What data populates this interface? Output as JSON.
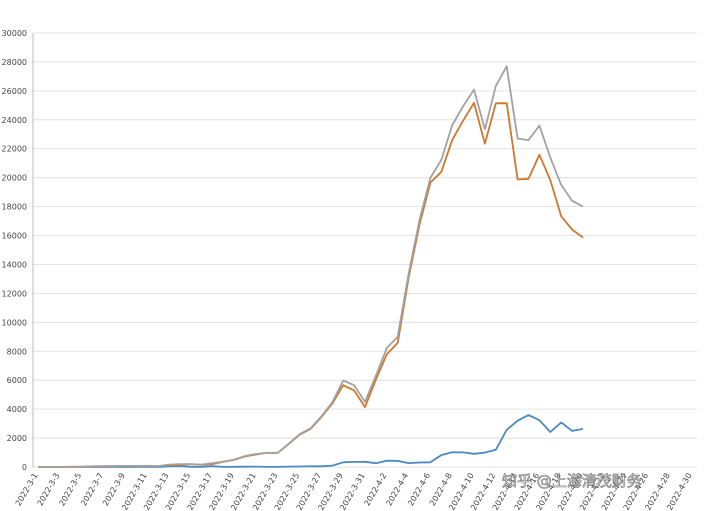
{
  "chart_data": {
    "type": "line",
    "categories": [
      "2022-3-1",
      null,
      "2022-3-3",
      null,
      "2022-3-5",
      null,
      "2022-3-7",
      null,
      "2022-3-9",
      null,
      "2022-3-11",
      null,
      "2022-3-13",
      null,
      "2022-3-15",
      null,
      "2022-3-17",
      null,
      "2022-3-19",
      null,
      "2022-3-21",
      null,
      "2022-3-23",
      null,
      "2022-3-25",
      null,
      "2022-3-27",
      null,
      "2022-3-29",
      null,
      "2022-3-31",
      null,
      "2022-4-2",
      null,
      "2022-4-4",
      null,
      "2022-4-6",
      null,
      "2022-4-8",
      null,
      "2022-4-10",
      null,
      "2022-4-12",
      null,
      "2022-4-14",
      null,
      "2022-4-16",
      null,
      "2022-4-18",
      null,
      "2022-4-20",
      null,
      "2022-4-22",
      null,
      "2022-4-24",
      null,
      "2022-4-26",
      null,
      "2022-4-28",
      null,
      "2022-4-30"
    ],
    "series": [
      {
        "color": "#4a89c2",
        "values": [
          1,
          1,
          3,
          2,
          0,
          3,
          3,
          4,
          3,
          11,
          5,
          1,
          41,
          65,
          5,
          8,
          57,
          8,
          17,
          24,
          31,
          4,
          4,
          29,
          38,
          45,
          50,
          96,
          326,
          355,
          358,
          260,
          438,
          425,
          268,
          311,
          322,
          824,
          1015,
          1006,
          914,
          994,
          1189,
          2573,
          3200,
          3590,
          3238,
          2417,
          3084,
          2494,
          2634,
          null,
          null,
          null,
          null,
          null,
          null,
          null,
          null,
          null,
          null
        ]
      },
      {
        "color": "#d2762c",
        "values": [
          1,
          1,
          2,
          14,
          16,
          45,
          51,
          62,
          76,
          64,
          78,
          64,
          128,
          130,
          197,
          150,
          203,
          366,
          492,
          734,
          865,
          977,
          979,
          1580,
          2231,
          2631,
          3450,
          4381,
          5656,
          5298,
          4144,
          6051,
          7788,
          8581,
          13086,
          16766,
          19660,
          20398,
          22609,
          23937,
          25173,
          22348,
          25141,
          25146,
          19872,
          19923,
          21582,
          19831,
          17332,
          16407,
          15861,
          null,
          null,
          null,
          null,
          null,
          null,
          null,
          null,
          null,
          null
        ]
      },
      {
        "color": "#a2a2a2",
        "values": [
          2,
          2,
          5,
          16,
          16,
          48,
          54,
          66,
          79,
          75,
          83,
          65,
          169,
          195,
          202,
          158,
          260,
          374,
          509,
          758,
          896,
          981,
          983,
          1609,
          2269,
          2676,
          3500,
          4477,
          5982,
          5653,
          4502,
          6311,
          8226,
          9006,
          13354,
          17077,
          19982,
          21222,
          23624,
          24943,
          26087,
          23342,
          26330,
          27700,
          22700,
          22600,
          23600,
          21400,
          19500,
          18400,
          18000,
          null,
          null,
          null,
          null,
          null,
          null,
          null,
          null,
          null,
          null
        ]
      }
    ],
    "ylim": [
      0,
      30000
    ],
    "yticks": [
      0,
      2000,
      4000,
      6000,
      8000,
      10000,
      12000,
      14000,
      16000,
      18000,
      20000,
      22000,
      24000,
      26000,
      28000,
      30000
    ],
    "grid": true,
    "watermark": "知乎 @上海清茂财务"
  }
}
